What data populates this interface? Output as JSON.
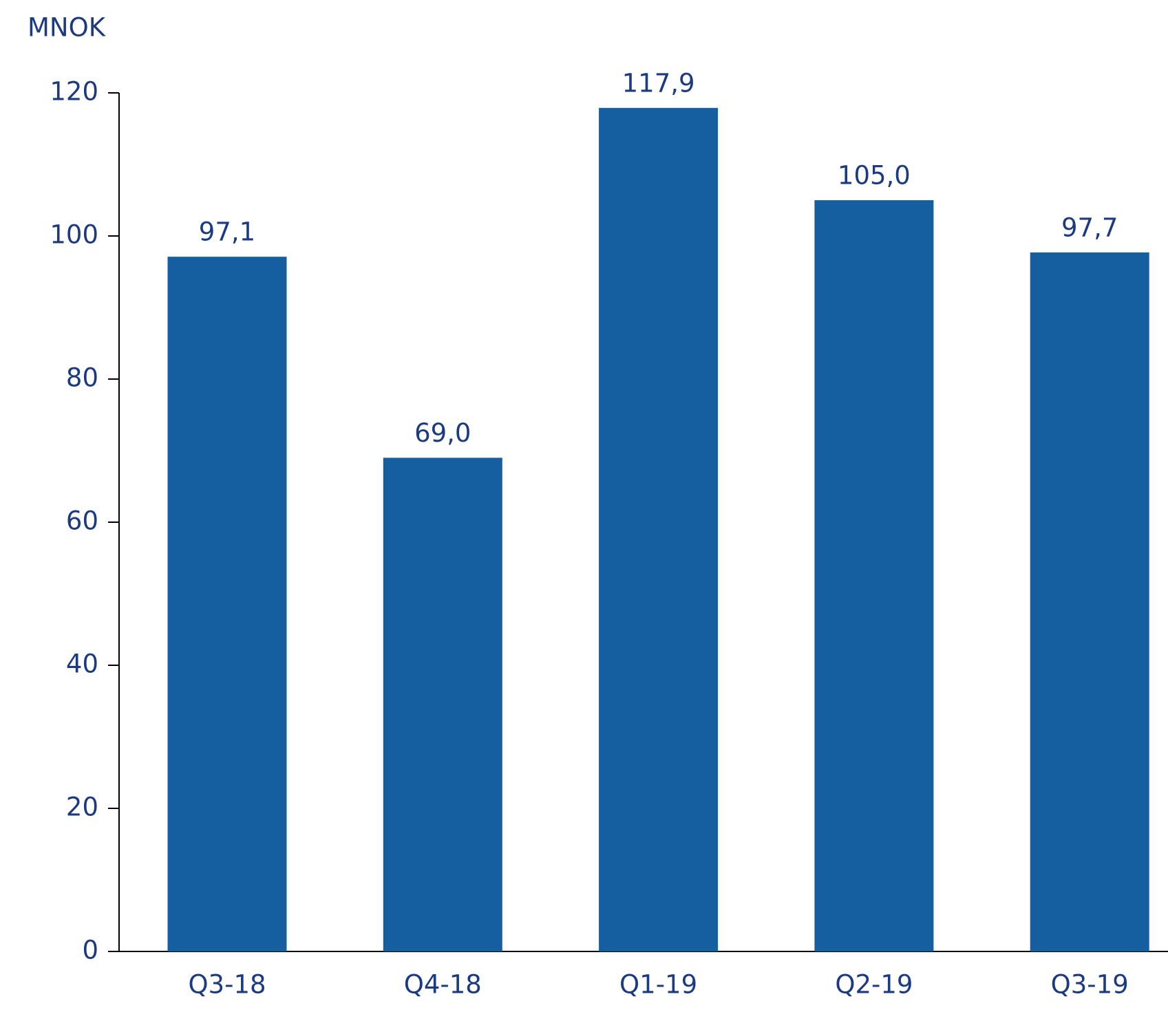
{
  "chart_data": {
    "type": "bar",
    "unit_label": "MNOK",
    "categories": [
      "Q3-18",
      "Q4-18",
      "Q1-19",
      "Q2-19",
      "Q3-19"
    ],
    "values": [
      97.1,
      69.0,
      117.9,
      105.0,
      97.7
    ],
    "value_labels": [
      "97,1",
      "69,0",
      "117,9",
      "105,0",
      "97,7"
    ],
    "color": "#155fa0",
    "ylim": [
      0,
      120
    ],
    "yticks": [
      0,
      20,
      40,
      60,
      80,
      100,
      120
    ],
    "grid": false
  }
}
